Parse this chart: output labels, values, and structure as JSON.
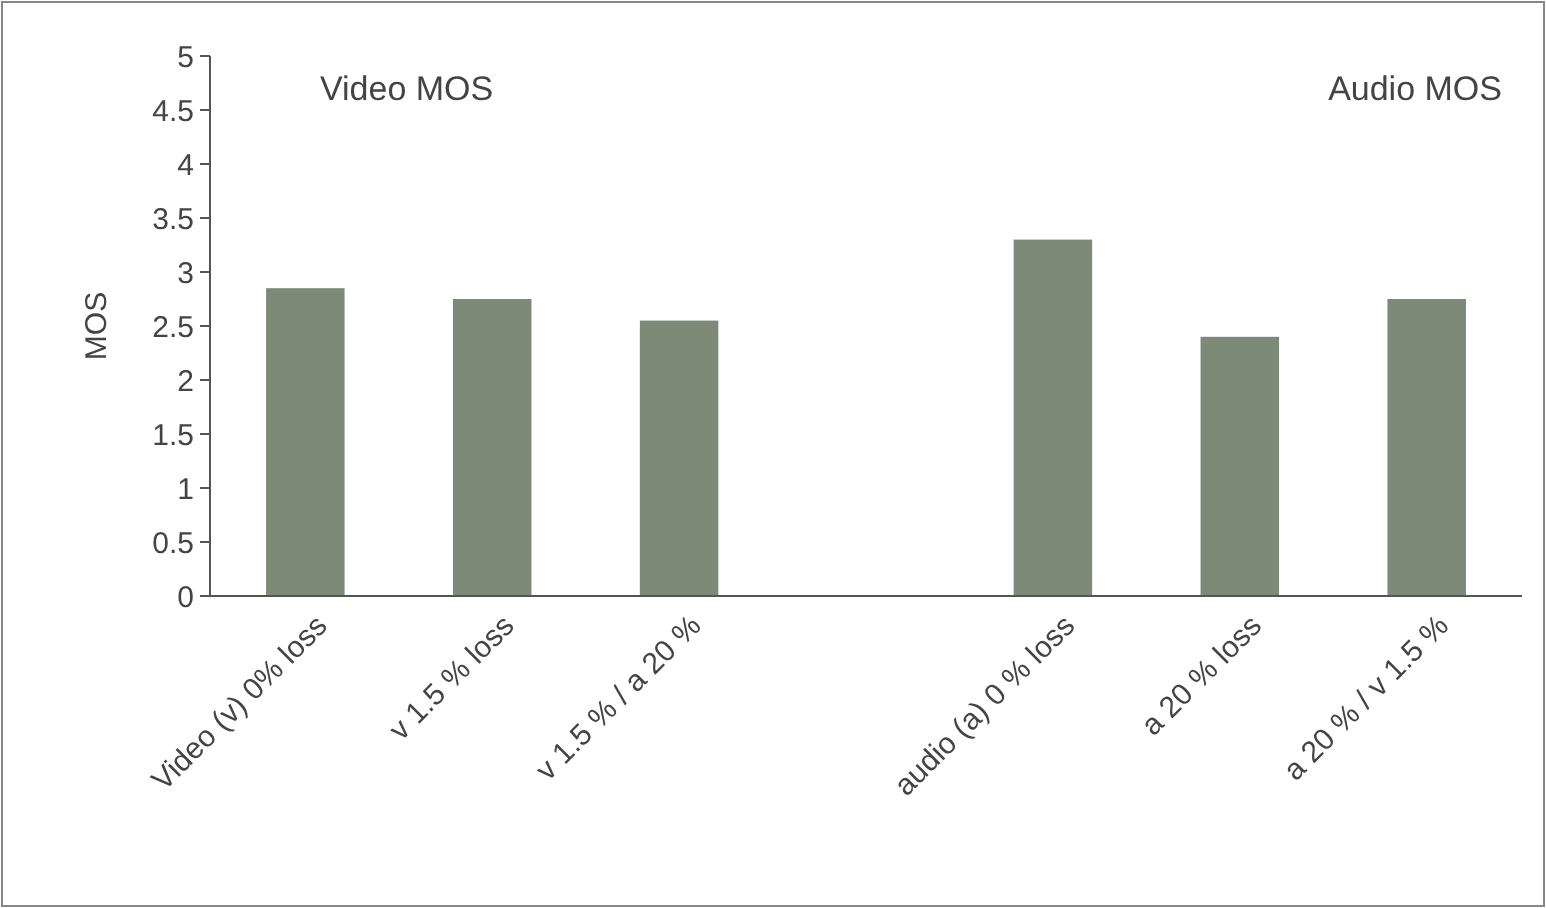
{
  "chart_data": {
    "type": "bar",
    "ylabel": "MOS",
    "categories": [
      "Video (v) 0% loss",
      "v 1.5 % loss",
      "v 1.5 % / a 20 %",
      null,
      "audio (a) 0 % loss",
      "a 20 % loss",
      "a 20 % / v 1.5 %"
    ],
    "values": [
      2.85,
      2.75,
      2.55,
      null,
      3.3,
      2.4,
      2.75
    ],
    "color": "#7e8a78",
    "ylim": [
      0,
      5
    ],
    "yticks": [
      0,
      0.5,
      1,
      1.5,
      2,
      2.5,
      3,
      3.5,
      4,
      4.5,
      5
    ],
    "grid": false,
    "annotations": [
      "Video MOS",
      "Audio MOS"
    ]
  }
}
